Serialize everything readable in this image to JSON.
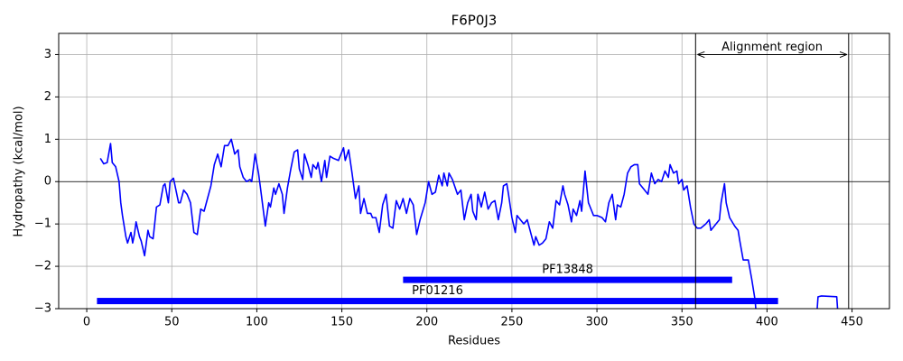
{
  "chart_data": {
    "type": "line",
    "title": "F6P0J3",
    "xlabel": "Residues",
    "ylabel": "Hydropathy (kcal/mol)",
    "x": [
      8,
      10,
      12,
      14,
      15,
      17,
      19,
      20,
      21,
      23,
      24,
      26,
      27,
      28,
      29,
      31,
      32,
      34,
      36,
      37,
      39,
      41,
      43,
      45,
      46,
      48,
      49,
      51,
      54,
      55,
      57,
      59,
      61,
      63,
      65,
      67,
      69,
      71,
      73,
      75,
      77,
      79,
      81,
      83,
      85,
      87,
      89,
      90,
      92,
      94,
      96,
      97,
      99,
      101,
      102,
      105,
      107,
      108,
      110,
      111,
      113,
      115,
      116,
      118,
      120,
      122,
      124,
      125,
      127,
      128,
      130,
      132,
      133,
      135,
      136,
      138,
      140,
      141,
      143,
      145,
      148,
      149,
      151,
      152,
      154,
      156,
      158,
      160,
      161,
      163,
      165,
      167,
      168,
      170,
      172,
      174,
      176,
      178,
      180,
      182,
      184,
      186,
      188,
      190,
      192,
      194,
      196,
      199,
      201,
      203,
      205,
      207,
      209,
      210,
      212,
      213,
      215,
      218,
      220,
      222,
      224,
      226,
      227,
      229,
      230,
      232,
      234,
      236,
      238,
      240,
      242,
      244,
      245,
      247,
      248,
      250,
      252,
      253,
      255,
      257,
      259,
      261,
      263,
      264,
      266,
      268,
      270,
      272,
      274,
      276,
      278,
      280,
      281,
      283,
      285,
      286,
      288,
      290,
      291,
      293,
      295,
      296,
      298,
      300,
      303,
      305,
      307,
      309,
      311,
      312,
      314,
      316,
      318,
      320,
      322,
      324,
      325,
      327,
      330,
      332,
      334,
      336,
      338,
      340,
      342,
      343,
      345,
      347,
      348,
      350,
      351,
      353,
      355,
      357,
      359,
      361,
      364,
      366,
      367,
      369,
      372,
      373,
      375,
      376,
      378,
      381,
      383,
      384,
      386,
      389,
      391,
      393,
      394,
      395,
      429,
      430,
      432,
      441,
      442
    ],
    "values": [
      0.55,
      0.42,
      0.45,
      0.9,
      0.45,
      0.35,
      0.0,
      -0.5,
      -0.8,
      -1.3,
      -1.45,
      -1.2,
      -1.45,
      -1.25,
      -0.95,
      -1.3,
      -1.4,
      -1.75,
      -1.15,
      -1.3,
      -1.35,
      -0.6,
      -0.55,
      -0.1,
      -0.05,
      -0.5,
      0.0,
      0.08,
      -0.5,
      -0.5,
      -0.2,
      -0.3,
      -0.5,
      -1.2,
      -1.25,
      -0.65,
      -0.7,
      -0.4,
      -0.1,
      0.4,
      0.65,
      0.35,
      0.85,
      0.85,
      1.0,
      0.65,
      0.75,
      0.35,
      0.1,
      0.0,
      0.05,
      0.0,
      0.65,
      0.2,
      -0.1,
      -1.05,
      -0.5,
      -0.6,
      -0.15,
      -0.3,
      -0.05,
      -0.3,
      -0.75,
      -0.15,
      0.3,
      0.7,
      0.75,
      0.3,
      0.05,
      0.65,
      0.4,
      0.1,
      0.4,
      0.3,
      0.45,
      0.0,
      0.5,
      0.1,
      0.6,
      0.55,
      0.5,
      0.6,
      0.8,
      0.5,
      0.75,
      0.2,
      -0.4,
      -0.1,
      -0.75,
      -0.4,
      -0.75,
      -0.75,
      -0.85,
      -0.85,
      -1.2,
      -0.55,
      -0.3,
      -1.05,
      -1.1,
      -0.45,
      -0.65,
      -0.4,
      -0.75,
      -0.4,
      -0.55,
      -1.25,
      -0.9,
      -0.5,
      0.0,
      -0.3,
      -0.25,
      0.15,
      -0.1,
      0.2,
      -0.1,
      0.2,
      0.05,
      -0.3,
      -0.2,
      -0.9,
      -0.5,
      -0.3,
      -0.7,
      -0.9,
      -0.3,
      -0.6,
      -0.25,
      -0.65,
      -0.5,
      -0.45,
      -0.9,
      -0.5,
      -0.1,
      -0.05,
      -0.3,
      -0.85,
      -1.2,
      -0.8,
      -0.9,
      -1.0,
      -0.9,
      -1.2,
      -1.5,
      -1.3,
      -1.5,
      -1.45,
      -1.35,
      -0.95,
      -1.1,
      -0.45,
      -0.55,
      -0.1,
      -0.3,
      -0.55,
      -0.95,
      -0.65,
      -0.8,
      -0.45,
      -0.7,
      0.25,
      -0.5,
      -0.6,
      -0.8,
      -0.8,
      -0.85,
      -0.95,
      -0.5,
      -0.3,
      -0.9,
      -0.55,
      -0.6,
      -0.3,
      0.2,
      0.35,
      0.4,
      0.4,
      -0.05,
      -0.15,
      -0.3,
      0.2,
      -0.05,
      0.05,
      0.0,
      0.25,
      0.1,
      0.4,
      0.2,
      0.25,
      -0.05,
      0.05,
      -0.2,
      -0.1,
      -0.6,
      -1.0,
      -1.1,
      -1.1,
      -1.0,
      -0.9,
      -1.15,
      -1.05,
      -0.9,
      -0.5,
      -0.05,
      -0.5,
      -0.85,
      -1.05,
      -1.15,
      -1.4,
      -1.85,
      -1.85,
      -2.3,
      -2.8,
      -3.3,
      null,
      -3.3,
      -2.72,
      -2.7,
      -2.72,
      -3.3
    ],
    "color": "#0000ff",
    "xlim": [
      -16.5,
      472
    ],
    "ylim": [
      -3,
      3.5
    ],
    "xticks": [
      0,
      50,
      100,
      150,
      200,
      250,
      300,
      350,
      400,
      450
    ],
    "yticks": [
      {
        "value": -3,
        "label": "−3"
      },
      {
        "value": -2,
        "label": "−2"
      },
      {
        "value": -1,
        "label": "−1"
      },
      0,
      1,
      2,
      3
    ],
    "grid": true,
    "hline": 0,
    "domains": [
      {
        "name": "PF13848",
        "start": 186,
        "end": 379.5,
        "y": -2.32,
        "color": "#0000ff"
      },
      {
        "name": "PF01216",
        "start": 6,
        "end": 406.5,
        "y": -2.82,
        "color": "#0000ff"
      }
    ],
    "alignment_region": {
      "label": "Alignment region",
      "start": 358,
      "end": 448,
      "y": 3
    }
  }
}
